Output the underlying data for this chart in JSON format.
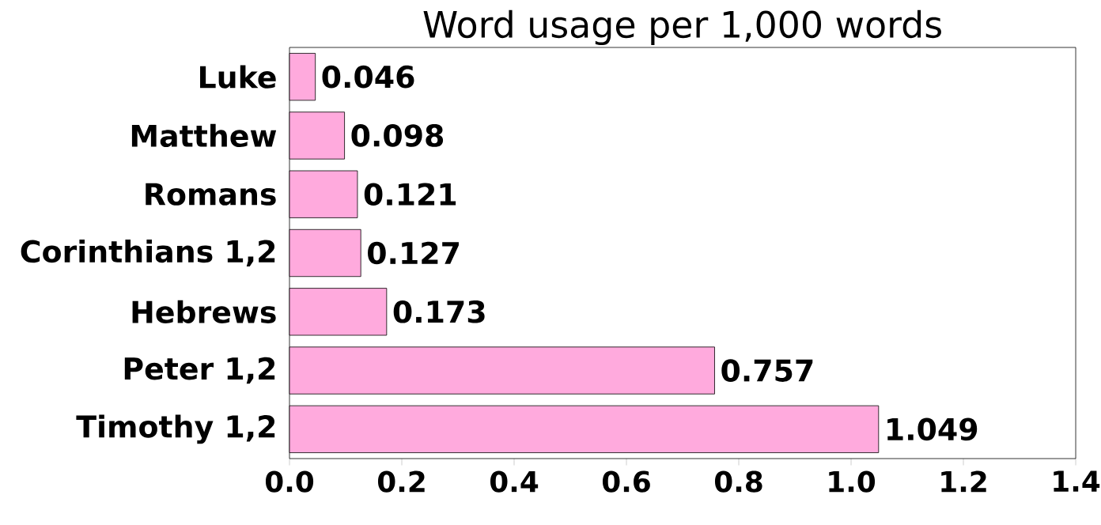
{
  "chart_data": {
    "type": "bar",
    "orientation": "horizontal",
    "title": "Word usage per 1,000 words",
    "categories": [
      "Luke",
      "Matthew",
      "Romans",
      "Corinthians 1,2",
      "Hebrews",
      "Peter 1,2",
      "Timothy 1,2"
    ],
    "values": [
      0.046,
      0.098,
      0.121,
      0.127,
      0.173,
      0.757,
      1.049
    ],
    "color": "#ffaadd",
    "xlim": [
      0,
      1.4
    ],
    "xticks": [
      {
        "value": 0,
        "label": "0.0"
      },
      {
        "value": 0.2,
        "label": "0.2"
      },
      {
        "value": 0.4,
        "label": "0.4"
      },
      {
        "value": 0.6,
        "label": "0.6"
      },
      {
        "value": 0.8,
        "label": "0.8"
      },
      {
        "value": 1.0,
        "label": "1.0"
      },
      {
        "value": 1.2,
        "label": "1.2"
      },
      {
        "value": 1.4,
        "label": "1.4"
      }
    ],
    "data_labels": true,
    "grid": false
  }
}
